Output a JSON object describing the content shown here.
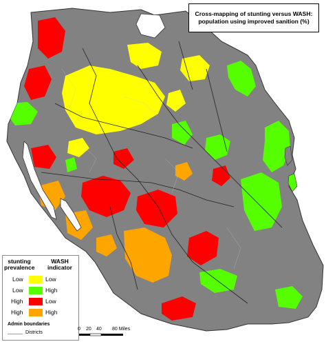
{
  "title": {
    "line1": "Cross-mapping of stunting versus WASH:",
    "line2": "population using improved sanition (%)"
  },
  "legend": {
    "header_left_1": "stunting",
    "header_left_2": "prevalence",
    "header_right_1": "WASH",
    "header_right_2": "indicator",
    "rows": [
      {
        "stunting": "Low",
        "wash": "Low",
        "color": "#ffff00"
      },
      {
        "stunting": "Low",
        "wash": "High",
        "color": "#55ff00"
      },
      {
        "stunting": "High",
        "wash": "Low",
        "color": "#ff0000"
      },
      {
        "stunting": "High",
        "wash": "High",
        "color": "#ffa500"
      }
    ],
    "admin_boundaries": "Admin boundaries",
    "districts": "Districts"
  },
  "scale_bar": {
    "labels": [
      "0",
      "20",
      "40",
      "80 Miles"
    ]
  },
  "colors": {
    "background_land": "#828282",
    "no_data": "#828282",
    "boundary": "#222222"
  }
}
